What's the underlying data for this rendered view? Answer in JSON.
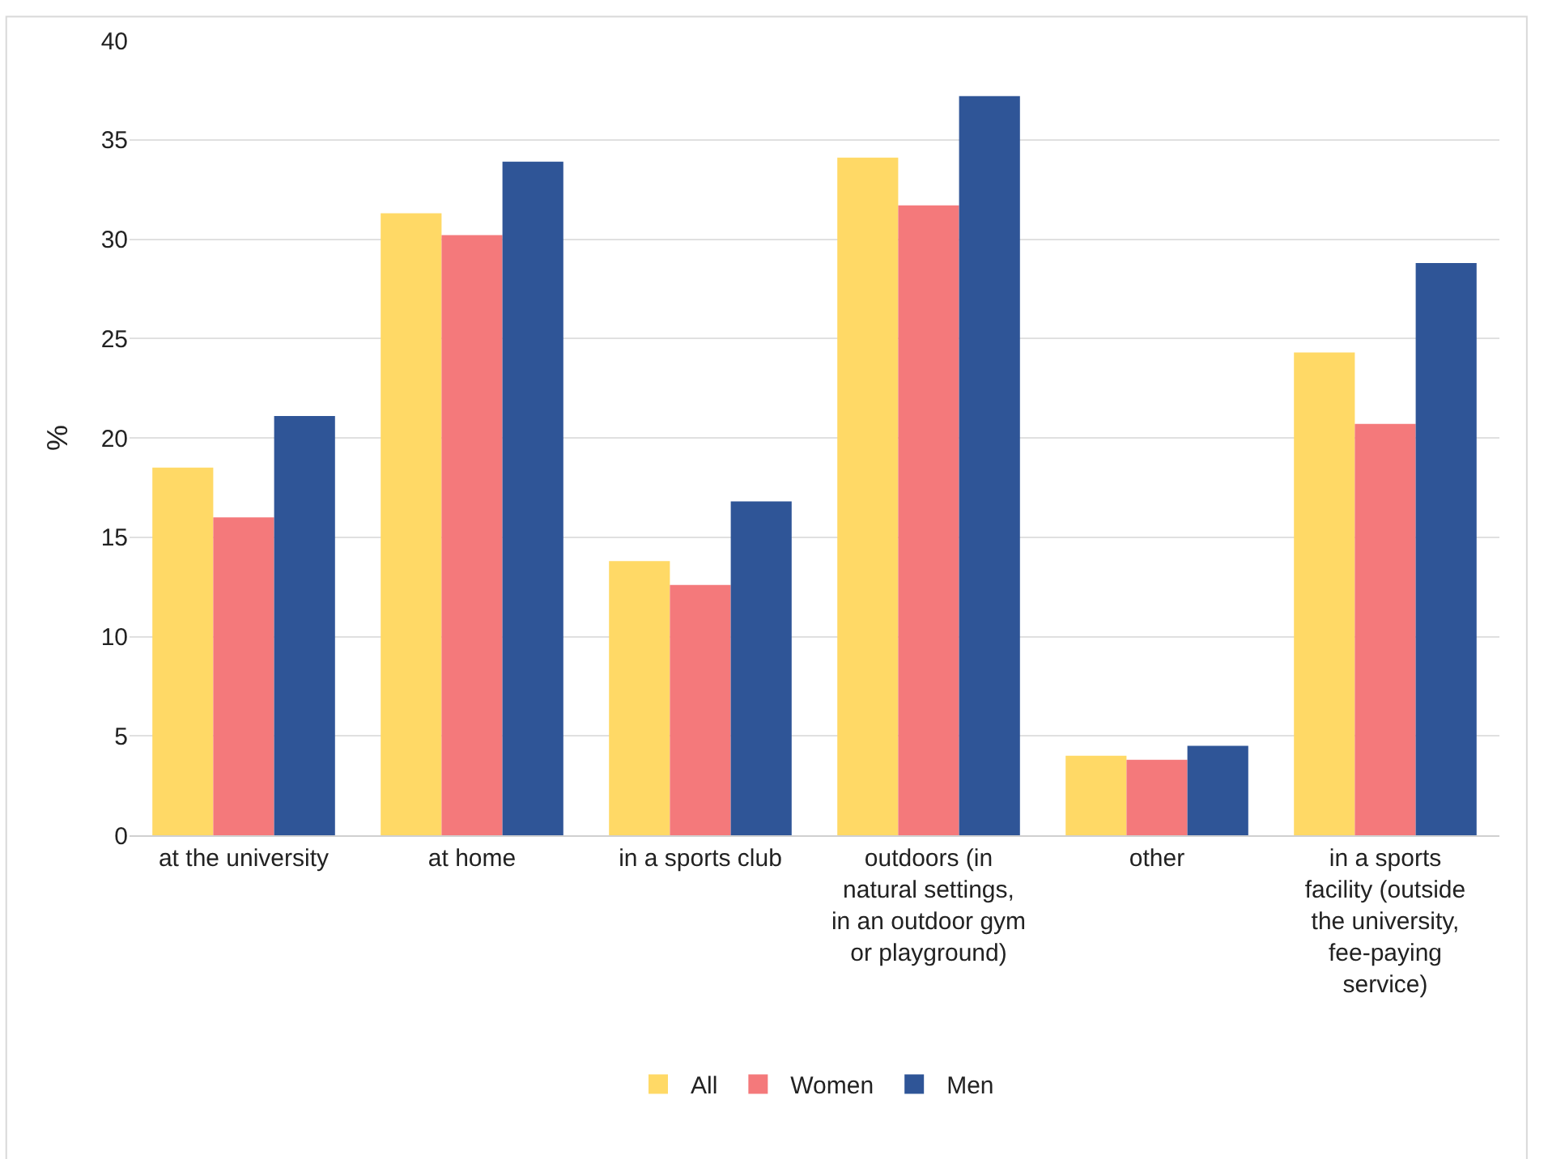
{
  "chart_data": {
    "type": "bar",
    "ylabel": "%",
    "categories": [
      "at the university",
      "at home",
      "in a sports club",
      "outdoors (in natural settings, in an outdoor gym or playground)",
      "other",
      "in a sports facility (outside the university, fee-paying service)"
    ],
    "series": [
      {
        "name": "All",
        "color": "#ffd966",
        "values": [
          18.5,
          31.3,
          13.8,
          34.1,
          4.0,
          24.3
        ]
      },
      {
        "name": "Women",
        "color": "#f4797b",
        "values": [
          16.0,
          30.2,
          12.6,
          31.7,
          3.8,
          20.7
        ]
      },
      {
        "name": "Men",
        "color": "#2f5597",
        "values": [
          21.1,
          33.9,
          16.8,
          37.2,
          4.5,
          28.8
        ]
      }
    ],
    "ylim": [
      0,
      40
    ],
    "yticks": [
      0,
      5,
      10,
      15,
      20,
      25,
      30,
      35,
      40
    ],
    "grid": "y",
    "legend": "bottom"
  }
}
